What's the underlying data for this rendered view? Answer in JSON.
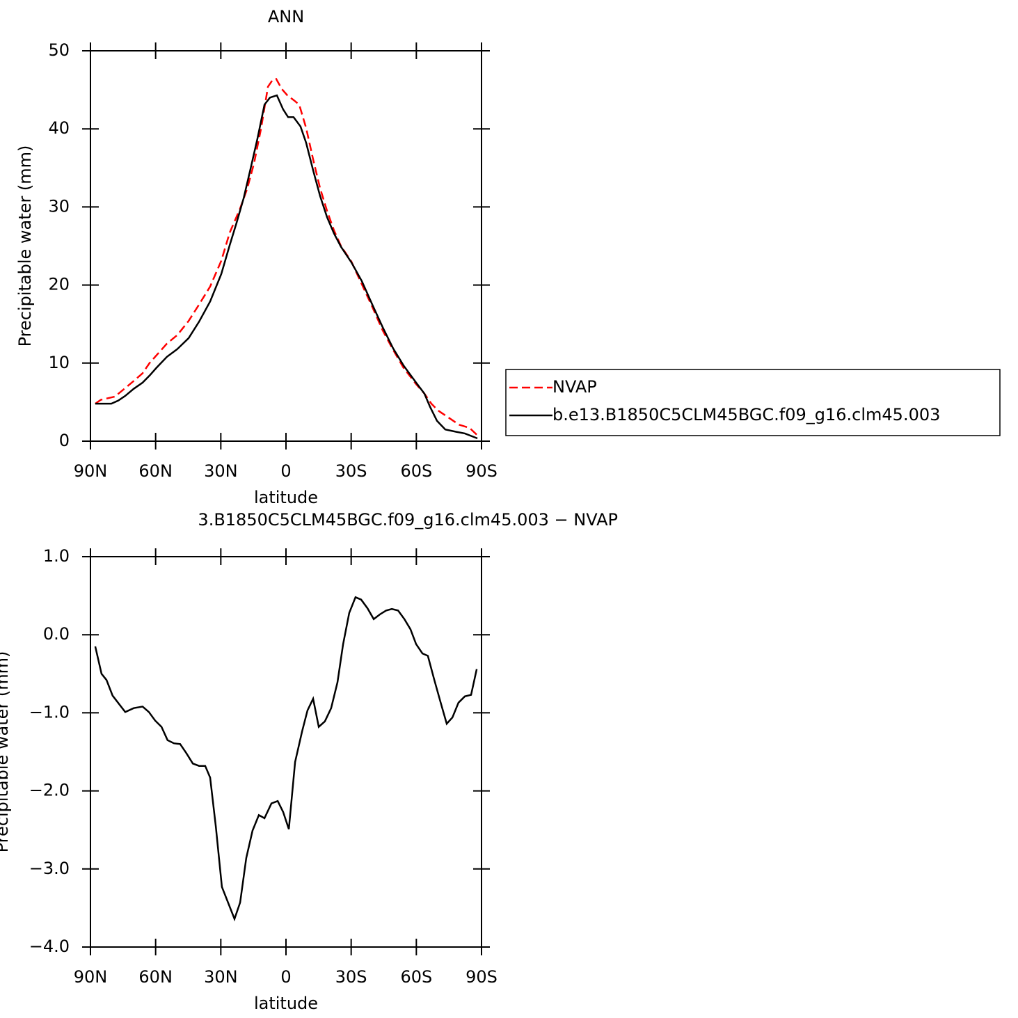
{
  "chart_data": [
    {
      "type": "line",
      "title": "ANN",
      "x_label": "latitude",
      "y_label": "Precipitable water (mm)",
      "xlim": [
        90,
        -90
      ],
      "xticks": [
        {
          "value": 90,
          "label": "90N"
        },
        {
          "value": 60,
          "label": "60N"
        },
        {
          "value": 30,
          "label": "30N"
        },
        0,
        {
          "value": -30,
          "label": "30S"
        },
        {
          "value": -60,
          "label": "60S"
        },
        {
          "value": -90,
          "label": "90S"
        }
      ],
      "ylim": [
        0,
        50
      ],
      "yticks": [
        0,
        10,
        20,
        30,
        40,
        50
      ],
      "legend": "right",
      "series": [
        {
          "name": "NVAP",
          "color": "#ff0000",
          "line_style": "dashed",
          "x": [
            87.8,
            85.2,
            82.0,
            78.8,
            74.0,
            70.1,
            66.0,
            62.8,
            59.6,
            54.8,
            50.0,
            44.8,
            40.0,
            34.9,
            29.8,
            25.9,
            21.1,
            17.9,
            14.7,
            11.5,
            8.3,
            6.1,
            4.5,
            1.9,
            -0.6,
            -3.5,
            -6.1,
            -9.3,
            -12.5,
            -15.7,
            -18.9,
            -22.1,
            -25.3,
            -30.1,
            -34.9,
            -39.7,
            -44.5,
            -49.3,
            -54.1,
            -59.9,
            -63.7,
            -66.9,
            -70.1,
            -74.9,
            -79.7,
            -84.5,
            -88.7
          ],
          "values": [
            4.8,
            5.3,
            5.5,
            5.7,
            6.8,
            7.7,
            8.7,
            10.0,
            11.0,
            12.5,
            13.6,
            15.4,
            17.5,
            19.8,
            23.1,
            26.7,
            29.8,
            32.3,
            35.6,
            40.0,
            45.4,
            46.3,
            46.4,
            45.1,
            44.3,
            43.7,
            43.1,
            40.1,
            36.1,
            32.4,
            29.5,
            27.0,
            25.0,
            23.0,
            20.1,
            17.2,
            14.2,
            11.7,
            9.4,
            7.3,
            6.1,
            4.8,
            3.9,
            3.0,
            2.1,
            1.7,
            0.6
          ]
        },
        {
          "name": "b.e13.B1850C5CLM45BGC.f09_g16.clm45.003",
          "color": "#000000",
          "line_style": "solid",
          "x": [
            87.8,
            80.4,
            77.2,
            74.0,
            70.1,
            66.0,
            62.8,
            59.6,
            54.8,
            50.0,
            44.8,
            40.0,
            34.9,
            29.8,
            25.9,
            22.7,
            19.5,
            16.3,
            13.1,
            9.9,
            7.4,
            4.2,
            1.3,
            -1.0,
            -3.5,
            -6.7,
            -9.3,
            -12.5,
            -15.7,
            -18.9,
            -22.1,
            -25.3,
            -30.1,
            -34.9,
            -39.7,
            -44.5,
            -49.3,
            -54.1,
            -59.9,
            -63.7,
            -66.3,
            -69.5,
            -73.3,
            -78.2,
            -82.3,
            -88.1
          ],
          "values": [
            4.8,
            4.8,
            5.2,
            5.8,
            6.7,
            7.5,
            8.4,
            9.4,
            10.8,
            11.8,
            13.2,
            15.3,
            17.9,
            21.4,
            25.1,
            28.0,
            31.1,
            34.9,
            38.8,
            43.1,
            44.0,
            44.3,
            42.5,
            41.5,
            41.5,
            40.3,
            38.2,
            34.7,
            31.4,
            28.7,
            26.6,
            24.9,
            22.9,
            20.5,
            17.5,
            14.6,
            11.9,
            9.7,
            7.5,
            6.1,
            4.4,
            2.6,
            1.5,
            1.2,
            0.99,
            0.36
          ]
        }
      ]
    },
    {
      "type": "line",
      "title": "3.B1850C5CLM45BGC.f09_g16.clm45.003 − NVAP",
      "x_label": "latitude",
      "y_label": "Precipitable water (mm)",
      "xlim": [
        90,
        -90
      ],
      "xticks": [
        {
          "value": 90,
          "label": "90N"
        },
        {
          "value": 60,
          "label": "60N"
        },
        {
          "value": 30,
          "label": "30N"
        },
        0,
        {
          "value": -30,
          "label": "30S"
        },
        {
          "value": -60,
          "label": "60S"
        },
        {
          "value": -90,
          "label": "90S"
        }
      ],
      "ylim": [
        -4,
        1
      ],
      "yticks": [
        {
          "value": -4,
          "label": "−4.0"
        },
        {
          "value": -3,
          "label": "−3.0"
        },
        {
          "value": -2,
          "label": "−2.0"
        },
        {
          "value": -1,
          "label": "−1.0"
        },
        {
          "value": 0,
          "label": "0.0"
        },
        {
          "value": 1,
          "label": "1.0"
        }
      ],
      "series": [
        {
          "color": "#000000",
          "line_style": "solid",
          "x": [
            87.8,
            84.9,
            82.6,
            79.8,
            74.0,
            70.1,
            66.0,
            63.1,
            60.2,
            57.3,
            54.5,
            51.6,
            48.7,
            45.8,
            42.9,
            40.0,
            37.2,
            34.9,
            32.3,
            29.5,
            23.7,
            21.1,
            18.3,
            15.4,
            12.5,
            9.9,
            6.7,
            3.8,
            1.3,
            -1.3,
            -4.2,
            -7.4,
            -9.9,
            -12.5,
            -15.1,
            -17.9,
            -20.8,
            -23.7,
            -26.3,
            -29.1,
            -32.0,
            -34.6,
            -37.5,
            -40.4,
            -43.2,
            -46.1,
            -48.7,
            -51.6,
            -54.5,
            -57.3,
            -59.9,
            -62.8,
            -65.3,
            -68.2,
            -71.1,
            -74.0,
            -76.6,
            -79.4,
            -82.3,
            -85.2,
            -87.8
          ],
          "values": [
            -0.15,
            -0.5,
            -0.58,
            -0.78,
            -0.99,
            -0.94,
            -0.92,
            -0.99,
            -1.1,
            -1.18,
            -1.35,
            -1.39,
            -1.4,
            -1.52,
            -1.65,
            -1.68,
            -1.68,
            -1.83,
            -2.46,
            -3.23,
            -3.64,
            -3.43,
            -2.86,
            -2.51,
            -2.31,
            -2.35,
            -2.16,
            -2.13,
            -2.27,
            -2.49,
            -1.63,
            -1.24,
            -0.97,
            -0.82,
            -1.18,
            -1.11,
            -0.94,
            -0.61,
            -0.12,
            0.28,
            0.48,
            0.45,
            0.34,
            0.2,
            0.26,
            0.31,
            0.33,
            0.31,
            0.2,
            0.07,
            -0.12,
            -0.24,
            -0.27,
            -0.57,
            -0.86,
            -1.14,
            -1.06,
            -0.87,
            -0.79,
            -0.77,
            -0.44
          ]
        }
      ]
    }
  ]
}
